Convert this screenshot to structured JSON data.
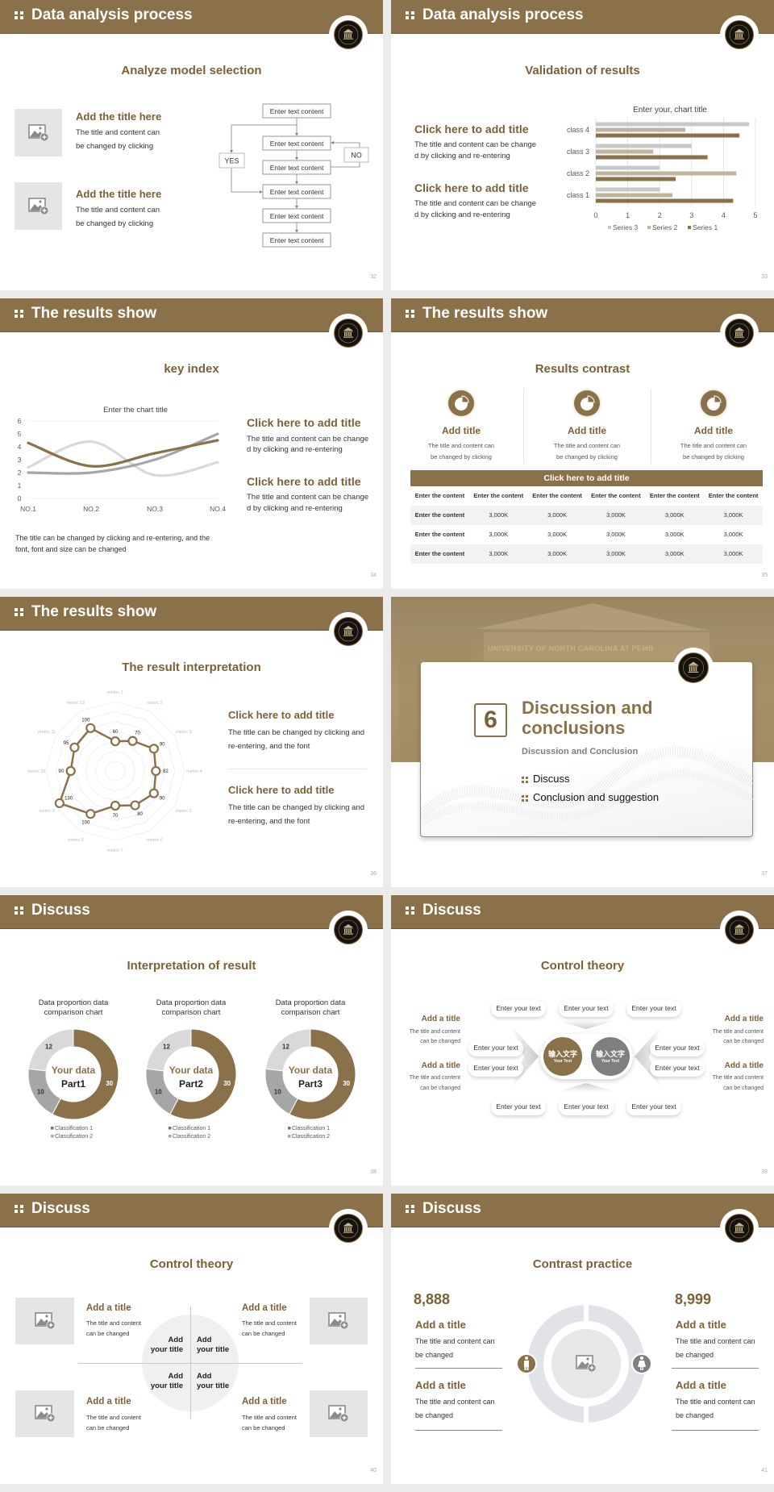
{
  "colors": {
    "brand": "#8b7149",
    "brand_dark": "#7a6138",
    "gray_dark": "#7f7f7f",
    "gray_mid": "#a6a6a6",
    "gray_light": "#d9d9d9",
    "background": "#ebebeb"
  },
  "icons": {
    "header": "dots-icon",
    "logo": "university-seal-logo",
    "placeholder": "image-add-icon",
    "result": "pie-chart-icon",
    "male": "man-icon",
    "female": "woman-icon"
  },
  "slides": [
    {
      "header": "Data analysis process",
      "title": "Analyze model selection",
      "page": "32",
      "items": [
        {
          "title": "Add the title here",
          "lines": [
            "The title and content can",
            "be changed by clicking"
          ]
        },
        {
          "title": "Add the title here",
          "lines": [
            "The title and content can",
            "be changed by clicking"
          ]
        }
      ],
      "flow": {
        "boxes": [
          "Enter text content",
          "Enter text content",
          "Enter text content",
          "Enter text content",
          "Enter text content",
          "Enter text content"
        ],
        "yes": "YES",
        "no": "NO"
      }
    },
    {
      "header": "Data analysis process",
      "title": "Validation of results",
      "page": "33",
      "items": [
        {
          "title": "Click here to add title",
          "lines": [
            "The title and content can be change",
            "d by clicking and re-entering"
          ]
        },
        {
          "title": "Click here to add title",
          "lines": [
            "The title and content can be change",
            "d by clicking and re-entering"
          ]
        }
      ]
    },
    {
      "header": "The results show",
      "title": "key index",
      "page": "34",
      "items": [
        {
          "title": "Click here to add title",
          "lines": [
            "The title and content can be change",
            "d by clicking and re-entering"
          ]
        },
        {
          "title": "Click here to add title",
          "lines": [
            "The title and content can be change",
            "d by clicking and re-entering"
          ]
        }
      ],
      "note": [
        "The title can be changed by clicking and re-entering, and the",
        "font, font and size can be changed"
      ]
    },
    {
      "header": "The results show",
      "title": "Results contrast",
      "page": "35",
      "cards": [
        {
          "title": "Add title",
          "lines": [
            "The title and content can",
            "be changed by clicking"
          ]
        },
        {
          "title": "Add title",
          "lines": [
            "The title and content can",
            "be changed by clicking"
          ]
        },
        {
          "title": "Add title",
          "lines": [
            "The title and content can",
            "be changed by clicking"
          ]
        }
      ],
      "table": {
        "title": "Click here to add title",
        "header": [
          "Enter the content",
          "Enter the content",
          "Enter the content",
          "Enter the content",
          "Enter the content",
          "Enter the content"
        ],
        "rows": [
          [
            "Enter the content",
            "3,000K",
            "3,000K",
            "3,000K",
            "3,000K",
            "3,000K"
          ],
          [
            "Enter the content",
            "3,000K",
            "3,000K",
            "3,000K",
            "3,000K",
            "3,000K"
          ],
          [
            "Enter the content",
            "3,000K",
            "3,000K",
            "3,000K",
            "3,000K",
            "3,000K"
          ]
        ]
      }
    },
    {
      "header": "The results show",
      "title": "The result interpretation",
      "page": "36",
      "items": [
        {
          "title": "Click here to add  title",
          "lines": [
            "The title can be changed by clicking and",
            "re-entering, and the font"
          ]
        },
        {
          "title": "Click here to add  title",
          "lines": [
            "The title can be changed by clicking and",
            "re-entering, and the font"
          ]
        }
      ]
    },
    {
      "page": "37",
      "banner": "UNIVERSITY OF NORTH CAROLINA AT PEMB",
      "number": "6",
      "heading": [
        "Discussion and",
        "conclusions"
      ],
      "subtitle": "Discussion and Conclusion",
      "bullets": [
        "Discuss",
        "Conclusion and suggestion"
      ]
    },
    {
      "header": "Discuss",
      "title": "Interpretation of result",
      "page": "38",
      "donuts": [
        {
          "center_top": "Your data",
          "center_bottom": "Part1"
        },
        {
          "center_top": "Your data",
          "center_bottom": "Part2"
        },
        {
          "center_top": "Your data",
          "center_bottom": "Part3"
        }
      ]
    },
    {
      "header": "Discuss",
      "title": "Control theory",
      "page": "39",
      "pills_top": [
        "Enter your text",
        "Enter your text",
        "Enter your text"
      ],
      "pills_bottom": [
        "Enter your text",
        "Enter your text",
        "Enter your text"
      ],
      "pills_left": [
        "Enter your text",
        "Enter your text"
      ],
      "pills_right": [
        "Enter your text",
        "Enter your text"
      ],
      "hubs": [
        {
          "cn": "输入文字",
          "en": "Your Text"
        },
        {
          "cn": "输入文字",
          "en": "Your Text"
        }
      ],
      "left": [
        {
          "title": "Add a title",
          "lines": [
            "The title and content",
            "can be changed"
          ]
        },
        {
          "title": "Add a title",
          "lines": [
            "The title and content",
            "can be changed"
          ]
        }
      ],
      "right": [
        {
          "title": "Add a title",
          "lines": [
            "The title and content",
            "can be changed"
          ]
        },
        {
          "title": "Add a title",
          "lines": [
            "The title and content",
            "can be changed"
          ]
        }
      ]
    },
    {
      "header": "Discuss",
      "title": "Control theory",
      "page": "40",
      "items": [
        {
          "title": "Add a title",
          "lines": [
            "The title and content",
            "can be changed"
          ]
        },
        {
          "title": "Add a title",
          "lines": [
            "The title and content",
            "can be changed"
          ]
        },
        {
          "title": "Add a title",
          "lines": [
            "The title and content",
            "can be changed"
          ]
        },
        {
          "title": "Add a title",
          "lines": [
            "The title and content",
            "can be changed"
          ]
        }
      ],
      "quadrants": [
        [
          "Add",
          "your title"
        ],
        [
          "Add",
          "your title"
        ],
        [
          "Add",
          "your title"
        ],
        [
          "Add",
          "your title"
        ]
      ]
    },
    {
      "header": "Discuss",
      "title": "Contrast practice",
      "page": "41",
      "left": {
        "number": "8,888",
        "items": [
          {
            "title": "Add a title",
            "lines": [
              "The title and content can",
              "be changed"
            ]
          },
          {
            "title": "Add a title",
            "lines": [
              "The title and content can",
              "be changed"
            ]
          }
        ]
      },
      "right": {
        "number": "8,999",
        "items": [
          {
            "title": "Add a title",
            "lines": [
              "The title and content can",
              "be changed"
            ]
          },
          {
            "title": "Add a title",
            "lines": [
              "The title and content can",
              "be changed"
            ]
          }
        ]
      }
    }
  ],
  "chart_data": [
    {
      "type": "bar",
      "orientation": "horizontal",
      "title": "Enter your, chart title",
      "categories": [
        "class 1",
        "class 2",
        "class 3",
        "class 4"
      ],
      "series": [
        {
          "name": "Series 1",
          "values": [
            4.3,
            2.5,
            3.5,
            4.5
          ],
          "color": "#8b7149"
        },
        {
          "name": "Series 2",
          "values": [
            2.4,
            4.4,
            1.8,
            2.8
          ],
          "color": "#c0b49e"
        },
        {
          "name": "Series 3",
          "values": [
            2,
            2,
            3,
            4.8
          ],
          "color": "#c8c8c8"
        }
      ],
      "xlim": [
        0,
        5
      ],
      "ticks": [
        "0",
        "1",
        "2",
        "3",
        "4",
        "5"
      ],
      "grid": true,
      "legend": "bottom"
    },
    {
      "type": "line",
      "smooth": true,
      "title": "Enter the chart title",
      "categories": [
        "NO.1",
        "NO.2",
        "NO.3",
        "NO.4"
      ],
      "series": [
        {
          "values": [
            4.3,
            2.5,
            3.5,
            4.5
          ],
          "color": "#8b7149"
        },
        {
          "values": [
            2.4,
            4.4,
            1.8,
            2.8
          ],
          "color": "#d9d9d9"
        },
        {
          "values": [
            2,
            2,
            3,
            5
          ],
          "color": "#a6a6a6"
        }
      ],
      "ylim": [
        0,
        6
      ],
      "yticks": [
        "0",
        "1",
        "2",
        "3",
        "4",
        "5",
        "6"
      ]
    },
    {
      "type": "radar",
      "categories": [
        "metric 1",
        "metric 2",
        "metric 3",
        "metric 4",
        "metric 5",
        "metric 6",
        "metric 7",
        "metric 8",
        "metric 9",
        "metric 10",
        "metric 11",
        "metric 12"
      ],
      "values": [
        60,
        70,
        90,
        82,
        90,
        80,
        70,
        100,
        130,
        90,
        95,
        100
      ],
      "value_labels": [
        "60",
        "70",
        "90",
        "82",
        "90",
        "80",
        "70",
        "100",
        "130",
        "90",
        "95",
        "100"
      ],
      "rlim": [
        0,
        140
      ],
      "color": "#8b7149"
    },
    {
      "type": "pie",
      "donut": true,
      "title": "Data proportion data comparison chart",
      "slices": [
        {
          "label": "Classification 1",
          "value": 30,
          "color": "#8b7149"
        },
        {
          "label": "Classification 2",
          "value": 10,
          "color": "#a6a6a6"
        },
        {
          "value": 12,
          "color": "#d9d9d9"
        }
      ],
      "value_labels": [
        "30",
        "10",
        "12"
      ],
      "legend": "bottom"
    },
    {
      "type": "pie",
      "donut": true,
      "title": "Data proportion data comparison chart",
      "slices": [
        {
          "label": "Classification 1",
          "value": 30,
          "color": "#8b7149"
        },
        {
          "label": "Classification 2",
          "value": 10,
          "color": "#a6a6a6"
        },
        {
          "value": 12,
          "color": "#d9d9d9"
        }
      ],
      "value_labels": [
        "30",
        "10",
        "12"
      ],
      "legend": "bottom"
    },
    {
      "type": "pie",
      "donut": true,
      "title": "Data proportion data comparison chart",
      "slices": [
        {
          "label": "Classification 1",
          "value": 30,
          "color": "#8b7149"
        },
        {
          "label": "Classification 2",
          "value": 10,
          "color": "#a6a6a6"
        },
        {
          "value": 12,
          "color": "#d9d9d9"
        }
      ],
      "value_labels": [
        "30",
        "10",
        "12"
      ],
      "legend": "bottom"
    }
  ]
}
